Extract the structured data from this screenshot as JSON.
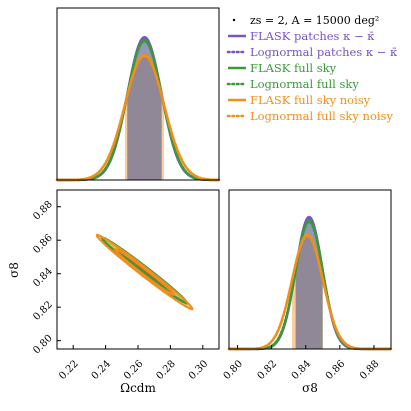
{
  "chart_data": {
    "type": "corner",
    "parameters": [
      {
        "name": "Omega_cdm",
        "label": "Ωcdm",
        "range": [
          0.21,
          0.31
        ],
        "ticks": [
          0.22,
          0.24,
          0.26,
          0.28,
          0.3
        ],
        "tick_labels": [
          "0.22",
          "0.24",
          "0.26",
          "0.28",
          "0.30"
        ]
      },
      {
        "name": "sigma8",
        "label": "σ8",
        "range": [
          0.795,
          0.89
        ],
        "ticks": [
          0.8,
          0.82,
          0.84,
          0.86,
          0.88
        ],
        "tick_labels": [
          "0.80",
          "0.82",
          "0.84",
          "0.86",
          "0.88"
        ]
      }
    ],
    "legend": {
      "title": "zs = 2, A = 15000 deg²",
      "placement": "top-right"
    },
    "series": [
      {
        "name": "FLASK patches κ − κ̄",
        "color": "#7b52c7",
        "linestyle": "solid",
        "mean": [
          0.264,
          0.842
        ],
        "sigma": [
          0.0105,
          0.0078
        ],
        "corr": -0.99
      },
      {
        "name": "Lognormal patches κ − κ̄",
        "color": "#7b52c7",
        "linestyle": "dotted",
        "mean": [
          0.264,
          0.842
        ],
        "sigma": [
          0.0106,
          0.0079
        ],
        "corr": -0.99
      },
      {
        "name": "FLASK full sky",
        "color": "#3a9a3a",
        "linestyle": "solid",
        "mean": [
          0.264,
          0.842
        ],
        "sigma": [
          0.0107,
          0.008
        ],
        "corr": -0.99
      },
      {
        "name": "Lognormal full sky",
        "color": "#3a9a3a",
        "linestyle": "dotted",
        "mean": [
          0.264,
          0.842
        ],
        "sigma": [
          0.0108,
          0.0081
        ],
        "corr": -0.99
      },
      {
        "name": "FLASK full sky noisy",
        "color": "#f28e1c",
        "linestyle": "solid",
        "mean": [
          0.264,
          0.841
        ],
        "sigma": [
          0.012,
          0.009
        ],
        "corr": -0.99
      },
      {
        "name": "Lognormal full sky noisy",
        "color": "#f28e1c",
        "linestyle": "dotted",
        "mean": [
          0.264,
          0.841
        ],
        "sigma": [
          0.0121,
          0.0091
        ],
        "corr": -0.99
      }
    ],
    "grid": false
  }
}
